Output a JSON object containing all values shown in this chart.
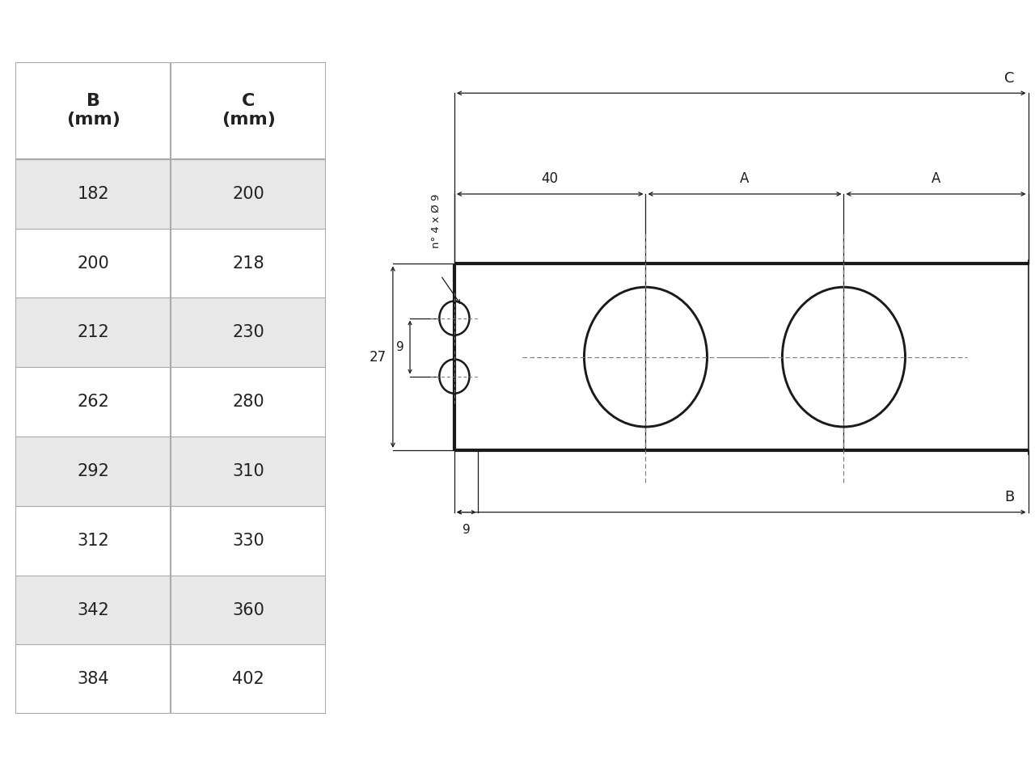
{
  "table_B": [
    182,
    200,
    212,
    262,
    292,
    312,
    342,
    384
  ],
  "table_C": [
    200,
    218,
    230,
    280,
    310,
    330,
    360,
    402
  ],
  "header_B": "B\n(mm)",
  "header_C": "C\n(mm)",
  "bg_color_odd": "#e8e8e8",
  "bg_color_even": "#ffffff",
  "bg_color_header": "#ffffff",
  "border_color": "#aaaaaa",
  "text_color": "#222222",
  "dim_label_40": "40",
  "dim_label_A": "A",
  "dim_label_27": "27",
  "dim_label_9a": "9",
  "dim_label_9b": "9",
  "dim_label_B": "B",
  "dim_label_C": "C",
  "annotation": "n° 4 x Ø 9"
}
